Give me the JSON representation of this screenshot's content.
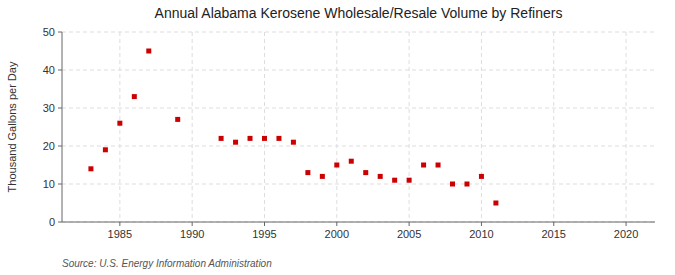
{
  "chart_data": {
    "type": "scatter",
    "title": "Annual Alabama Kerosene Wholesale/Resale Volume by Refiners",
    "ylabel": "Thousand Gallons per Day",
    "annotations": [
      "Source: U.S. Energy Information Administration"
    ],
    "x": [
      1983,
      1984,
      1985,
      1986,
      1987,
      1989,
      1992,
      1993,
      1994,
      1995,
      1996,
      1997,
      1998,
      1999,
      2000,
      2001,
      2002,
      2003,
      2004,
      2005,
      2006,
      2007,
      2008,
      2009,
      2010,
      2011
    ],
    "values": [
      14,
      19,
      26,
      33,
      45,
      27,
      22,
      21,
      22,
      22,
      22,
      21,
      13,
      12,
      15,
      16,
      13,
      12,
      11,
      11,
      15,
      15,
      10,
      10,
      12,
      5
    ],
    "color": "#cc0000",
    "marker": "square",
    "xlim": [
      1981,
      2022
    ],
    "ylim": [
      0,
      50
    ],
    "xticks": [
      1985,
      1990,
      1995,
      2000,
      2005,
      2010,
      2015,
      2020
    ],
    "yticks": [
      0,
      10,
      20,
      30,
      40,
      50
    ],
    "grid": true
  }
}
